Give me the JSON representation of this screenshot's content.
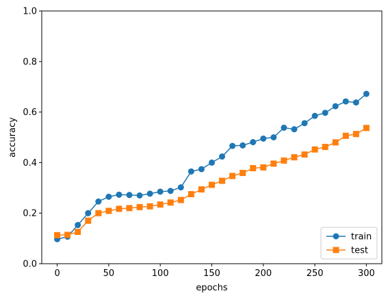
{
  "chart_data": {
    "type": "line",
    "title": "",
    "xlabel": "epochs",
    "ylabel": "accuracy",
    "xlim": [
      -15,
      315
    ],
    "ylim": [
      0.0,
      1.0
    ],
    "xticks": [
      0,
      50,
      100,
      150,
      200,
      250,
      300
    ],
    "yticks": [
      0.0,
      0.2,
      0.4,
      0.6,
      0.8,
      1.0
    ],
    "xtick_labels": [
      "0",
      "50",
      "100",
      "150",
      "200",
      "250",
      "300"
    ],
    "ytick_labels": [
      "0.0",
      "0.2",
      "0.4",
      "0.6",
      "0.8",
      "1.0"
    ],
    "grid": false,
    "legend_position": "lower-right",
    "series": [
      {
        "name": "train",
        "color": "#1f77b4",
        "marker": "circle",
        "x": [
          0,
          10,
          20,
          30,
          40,
          50,
          60,
          70,
          80,
          90,
          100,
          110,
          120,
          130,
          140,
          150,
          160,
          170,
          180,
          190,
          200,
          210,
          220,
          230,
          240,
          250,
          260,
          270,
          280,
          290,
          300
        ],
        "values": [
          0.097,
          0.107,
          0.153,
          0.2,
          0.246,
          0.265,
          0.273,
          0.272,
          0.27,
          0.277,
          0.285,
          0.288,
          0.302,
          0.365,
          0.374,
          0.4,
          0.424,
          0.466,
          0.468,
          0.481,
          0.495,
          0.5,
          0.538,
          0.532,
          0.556,
          0.585,
          0.597,
          0.623,
          0.642,
          0.638,
          0.672
        ]
      },
      {
        "name": "test",
        "color": "#ff7f0e",
        "marker": "square",
        "x": [
          0,
          10,
          20,
          30,
          40,
          50,
          60,
          70,
          80,
          90,
          100,
          110,
          120,
          130,
          140,
          150,
          160,
          170,
          180,
          190,
          200,
          210,
          220,
          230,
          240,
          250,
          260,
          270,
          280,
          290,
          300
        ],
        "values": [
          0.113,
          0.114,
          0.126,
          0.17,
          0.2,
          0.209,
          0.217,
          0.22,
          0.224,
          0.227,
          0.234,
          0.242,
          0.252,
          0.275,
          0.294,
          0.312,
          0.328,
          0.347,
          0.359,
          0.378,
          0.381,
          0.396,
          0.408,
          0.421,
          0.432,
          0.452,
          0.462,
          0.48,
          0.506,
          0.513,
          0.537
        ]
      }
    ]
  }
}
